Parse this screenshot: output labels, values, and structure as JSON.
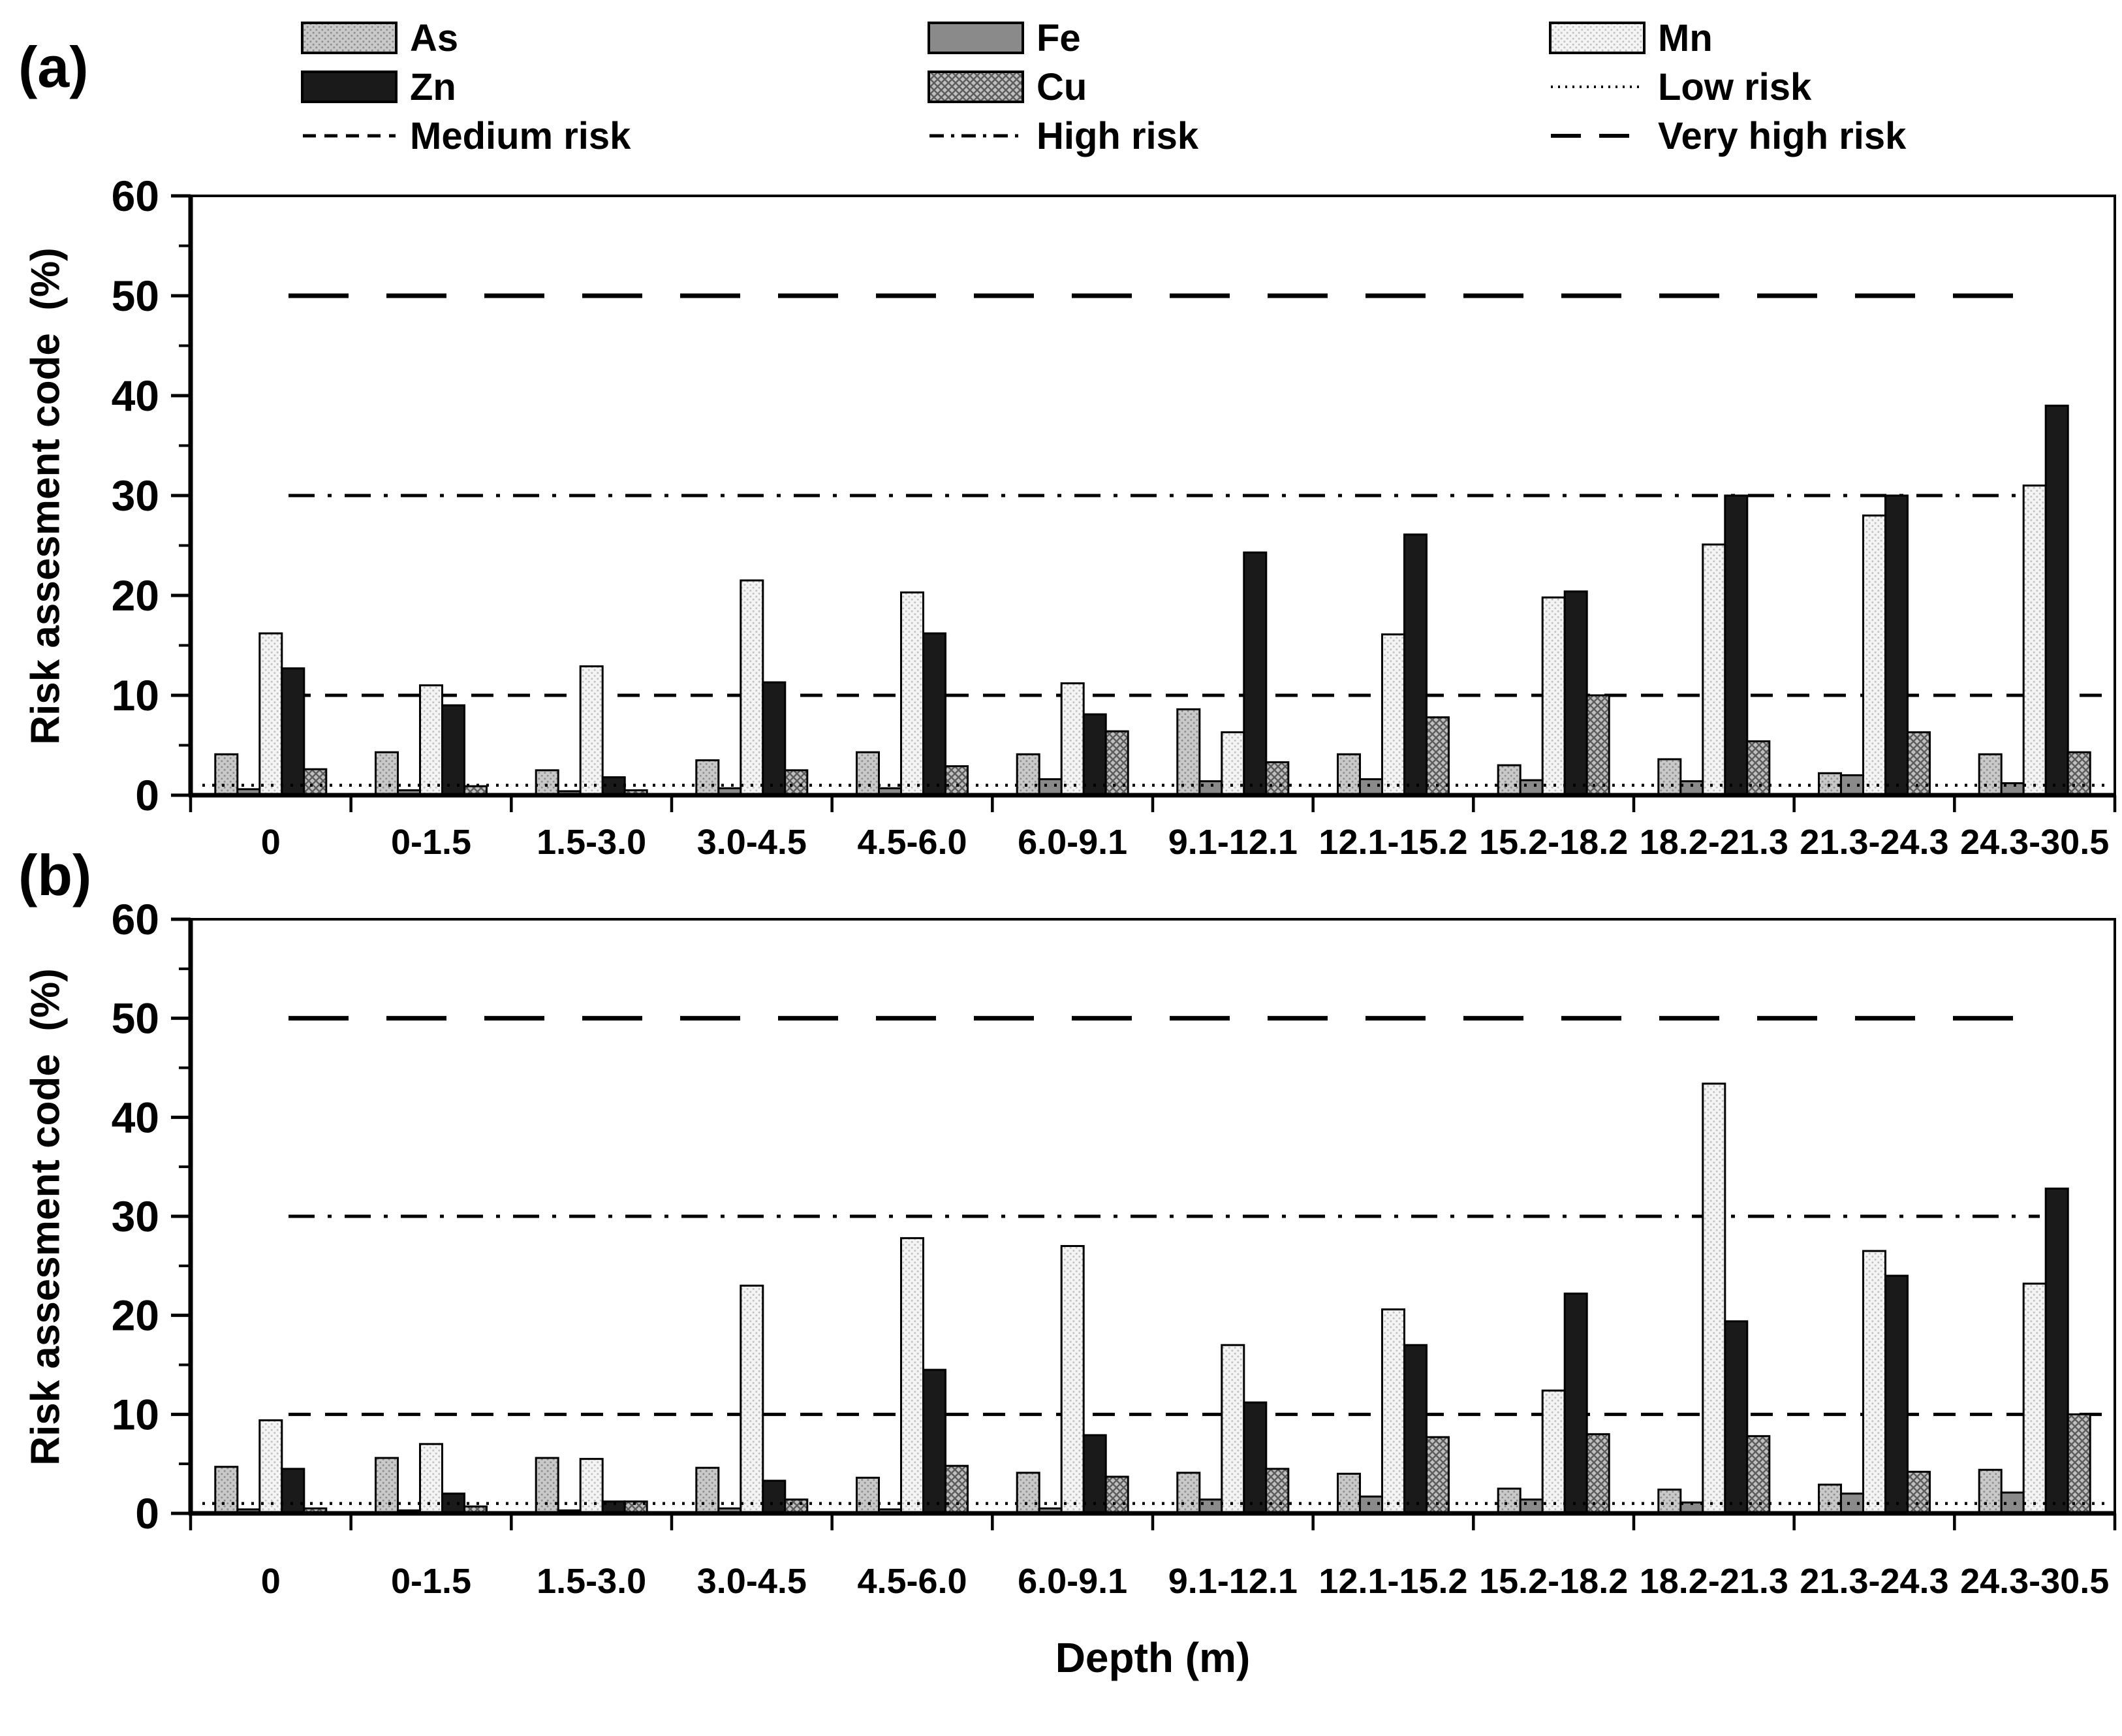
{
  "legend": {
    "series": [
      {
        "id": "as",
        "label": "As",
        "pattern": "dots",
        "base": "#c9c9c9",
        "accent": "#8f8f8f"
      },
      {
        "id": "fe",
        "label": "Fe",
        "pattern": "solid",
        "base": "#8a8a8a",
        "accent": "#8a8a8a"
      },
      {
        "id": "mn",
        "label": "Mn",
        "pattern": "dots",
        "base": "#f4f4f4",
        "accent": "#c2c2c2"
      },
      {
        "id": "zn",
        "label": "Zn",
        "pattern": "solid",
        "base": "#1a1a1a",
        "accent": "#1a1a1a"
      },
      {
        "id": "cu",
        "label": "Cu",
        "pattern": "hatch",
        "base": "#bfbfbf",
        "accent": "#5c5c5c"
      }
    ]
  },
  "axes": {
    "y_title": "Risk assesment code  (%)",
    "x_title": "Depth (m)"
  },
  "chart_data": [
    {
      "type": "bar",
      "panel": "(a)",
      "ylabel": "Risk assesment code  (%)",
      "xlabel": "",
      "ylim": [
        0,
        60
      ],
      "y_ticks": [
        0,
        10,
        20,
        30,
        40,
        50,
        60
      ],
      "categories": [
        "0",
        "0-1.5",
        "1.5-3.0",
        "3.0-4.5",
        "4.5-6.0",
        "6.0-9.1",
        "9.1-12.1",
        "12.1-15.2",
        "15.2-18.2",
        "18.2-21.3",
        "21.3-24.3",
        "24.3-30.5"
      ],
      "series": [
        {
          "name": "As",
          "values": [
            4.1,
            4.3,
            2.5,
            3.5,
            4.3,
            4.1,
            8.6,
            4.1,
            3.0,
            3.6,
            2.2,
            4.1
          ]
        },
        {
          "name": "Fe",
          "values": [
            0.6,
            0.5,
            0.4,
            0.7,
            0.7,
            1.6,
            1.4,
            1.6,
            1.5,
            1.4,
            2.0,
            1.2
          ]
        },
        {
          "name": "Mn",
          "values": [
            16.2,
            11.0,
            12.9,
            21.5,
            20.3,
            11.2,
            6.3,
            16.1,
            19.8,
            25.1,
            28.0,
            31.0
          ]
        },
        {
          "name": "Zn",
          "values": [
            12.7,
            9.0,
            1.8,
            11.3,
            16.2,
            8.1,
            24.3,
            26.1,
            20.4,
            30.0,
            30.0,
            39.0
          ]
        },
        {
          "name": "Cu",
          "values": [
            2.6,
            0.9,
            0.5,
            2.5,
            2.9,
            6.4,
            3.3,
            7.8,
            10.0,
            5.4,
            6.3,
            4.3
          ]
        }
      ],
      "reference_lines": [
        {
          "name": "Low risk",
          "y": 1,
          "style": "dotted"
        },
        {
          "name": "Medium risk",
          "y": 10,
          "style": "dashed"
        },
        {
          "name": "High risk",
          "y": 30,
          "style": "dashdot"
        },
        {
          "name": "Very high risk",
          "y": 50,
          "style": "longdash"
        }
      ]
    },
    {
      "type": "bar",
      "panel": "(b)",
      "ylabel": "Risk assesment code  (%)",
      "xlabel": "Depth (m)",
      "ylim": [
        0,
        60
      ],
      "y_ticks": [
        0,
        10,
        20,
        30,
        40,
        50,
        60
      ],
      "categories": [
        "0",
        "0-1.5",
        "1.5-3.0",
        "3.0-4.5",
        "4.5-6.0",
        "6.0-9.1",
        "9.1-12.1",
        "12.1-15.2",
        "15.2-18.2",
        "18.2-21.3",
        "21.3-24.3",
        "24.3-30.5"
      ],
      "series": [
        {
          "name": "As",
          "values": [
            4.7,
            5.6,
            5.6,
            4.6,
            3.6,
            4.1,
            4.1,
            4.0,
            2.5,
            2.4,
            2.9,
            4.4
          ]
        },
        {
          "name": "Fe",
          "values": [
            0.4,
            0.3,
            0.3,
            0.5,
            0.4,
            0.5,
            1.4,
            1.7,
            1.4,
            1.1,
            2.0,
            2.1
          ]
        },
        {
          "name": "Mn",
          "values": [
            9.4,
            7.0,
            5.5,
            23.0,
            27.8,
            27.0,
            17.0,
            20.6,
            12.4,
            43.4,
            26.5,
            23.2
          ]
        },
        {
          "name": "Zn",
          "values": [
            4.5,
            2.0,
            1.2,
            3.3,
            14.5,
            7.9,
            11.2,
            17.0,
            22.2,
            19.4,
            24.0,
            32.8
          ]
        },
        {
          "name": "Cu",
          "values": [
            0.5,
            0.7,
            1.2,
            1.4,
            4.8,
            3.7,
            4.5,
            7.7,
            8.0,
            7.8,
            4.2,
            10.0
          ]
        }
      ],
      "reference_lines": [
        {
          "name": "Low risk",
          "y": 1,
          "style": "dotted"
        },
        {
          "name": "Medium risk",
          "y": 10,
          "style": "dashed"
        },
        {
          "name": "High risk",
          "y": 30,
          "style": "dashdot"
        },
        {
          "name": "Very high risk",
          "y": 50,
          "style": "longdash"
        }
      ]
    }
  ]
}
